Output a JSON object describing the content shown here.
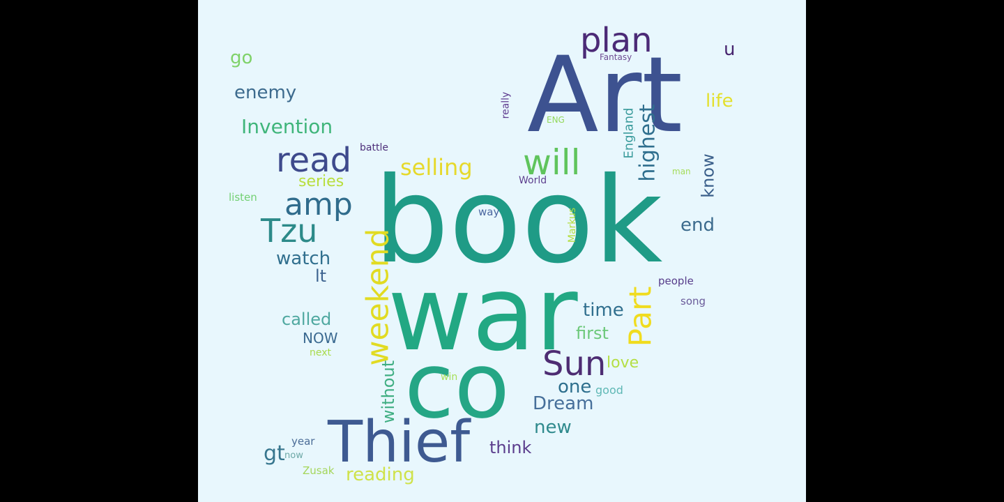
{
  "words": [
    {
      "key": "book",
      "text": "book",
      "color": "#1f9b86"
    },
    {
      "key": "war",
      "text": "war",
      "color": "#22a883"
    },
    {
      "key": "art",
      "text": "Art",
      "color": "#3d5290"
    },
    {
      "key": "co",
      "text": "co",
      "color": "#25a685"
    },
    {
      "key": "thief",
      "text": "Thief",
      "color": "#3e5a91"
    },
    {
      "key": "plan",
      "text": "plan",
      "color": "#4b2a76"
    },
    {
      "key": "u",
      "text": "u",
      "color": "#47246e"
    },
    {
      "key": "fantasy",
      "text": "Fantasy",
      "color": "#6f4c92"
    },
    {
      "key": "go",
      "text": "go",
      "color": "#7fd269"
    },
    {
      "key": "enemy",
      "text": "enemy",
      "color": "#3d6b8e"
    },
    {
      "key": "invention",
      "text": "Invention",
      "color": "#3fb57a"
    },
    {
      "key": "read",
      "text": "read",
      "color": "#3e4a8c"
    },
    {
      "key": "battle",
      "text": "battle",
      "color": "#4d2f7a"
    },
    {
      "key": "selling",
      "text": "selling",
      "color": "#e6d92b"
    },
    {
      "key": "will",
      "text": "will",
      "color": "#5fc45c"
    },
    {
      "key": "really",
      "text": "really",
      "color": "#5e3b8f"
    },
    {
      "key": "eng",
      "text": "ENG",
      "color": "#93d85a"
    },
    {
      "key": "highest",
      "text": "highest",
      "color": "#2f6f8e"
    },
    {
      "key": "england",
      "text": "England",
      "color": "#3a9b9c"
    },
    {
      "key": "life",
      "text": "life",
      "color": "#e3e02e"
    },
    {
      "key": "know",
      "text": "know",
      "color": "#3a5f8a"
    },
    {
      "key": "man",
      "text": "man",
      "color": "#a5dc59"
    },
    {
      "key": "series",
      "text": "series",
      "color": "#b8de3c"
    },
    {
      "key": "world",
      "text": "World",
      "color": "#5d3f8e"
    },
    {
      "key": "listen",
      "text": "listen",
      "color": "#72d072"
    },
    {
      "key": "amp",
      "text": "amp",
      "color": "#306c8c"
    },
    {
      "key": "tzu",
      "text": "Tzu",
      "color": "#2c8a89"
    },
    {
      "key": "way",
      "text": "way",
      "color": "#4a66a0"
    },
    {
      "key": "markus",
      "text": "Markus",
      "color": "#b3de3e"
    },
    {
      "key": "end",
      "text": "end",
      "color": "#3c6b8d"
    },
    {
      "key": "weekend",
      "text": "weekend",
      "color": "#e1db22"
    },
    {
      "key": "watch",
      "text": "watch",
      "color": "#306f8e"
    },
    {
      "key": "lt",
      "text": "lt",
      "color": "#3d6390"
    },
    {
      "key": "part",
      "text": "Part",
      "color": "#f0dc1f"
    },
    {
      "key": "people",
      "text": "people",
      "color": "#563c8a"
    },
    {
      "key": "song",
      "text": "song",
      "color": "#6a5b9a"
    },
    {
      "key": "time",
      "text": "time",
      "color": "#306f8e"
    },
    {
      "key": "called",
      "text": "called",
      "color": "#4fa8a0"
    },
    {
      "key": "now_caps",
      "text": "NOW",
      "color": "#3a6990"
    },
    {
      "key": "first",
      "text": "first",
      "color": "#6cc879"
    },
    {
      "key": "next",
      "text": "next",
      "color": "#a8db4a"
    },
    {
      "key": "sun",
      "text": "Sun",
      "color": "#4d2c72"
    },
    {
      "key": "love",
      "text": "love",
      "color": "#b4df44"
    },
    {
      "key": "one",
      "text": "one",
      "color": "#2d6f8d"
    },
    {
      "key": "without",
      "text": "without",
      "color": "#3fae82"
    },
    {
      "key": "win",
      "text": "win",
      "color": "#a7df58"
    },
    {
      "key": "good",
      "text": "good",
      "color": "#5fb8b5"
    },
    {
      "key": "dream",
      "text": "Dream",
      "color": "#466f9a"
    },
    {
      "key": "new",
      "text": "new",
      "color": "#2f8a8d"
    },
    {
      "key": "think",
      "text": "think",
      "color": "#5b3d8d"
    },
    {
      "key": "gt",
      "text": "gt",
      "color": "#37768e"
    },
    {
      "key": "year",
      "text": "year",
      "color": "#4b6c97"
    },
    {
      "key": "now_lower",
      "text": "now",
      "color": "#6da8a6"
    },
    {
      "key": "zusak",
      "text": "Zusak",
      "color": "#a4d65a"
    },
    {
      "key": "reading",
      "text": "reading",
      "color": "#cfe24a"
    }
  ]
}
